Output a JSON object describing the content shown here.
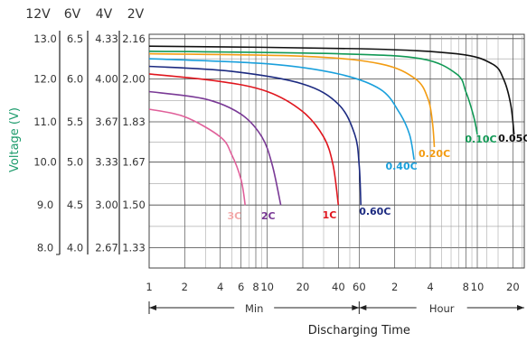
{
  "chart_data": {
    "type": "line",
    "ylabel": "Voltage (V)",
    "xlabel": "Discharging Time",
    "x_scale": "log",
    "x_unit_left": "Min",
    "x_unit_right": "Hour",
    "x_ticks": [
      {
        "label": "1",
        "minutes": 1
      },
      {
        "label": "2",
        "minutes": 2
      },
      {
        "label": "4",
        "minutes": 4
      },
      {
        "label": "6",
        "minutes": 6
      },
      {
        "label": "8",
        "minutes": 8
      },
      {
        "label": "10",
        "minutes": 10
      },
      {
        "label": "20",
        "minutes": 20
      },
      {
        "label": "40",
        "minutes": 40
      },
      {
        "label": "60",
        "minutes": 60
      },
      {
        "label": "2",
        "minutes": 120
      },
      {
        "label": "4",
        "minutes": 240
      },
      {
        "label": "8",
        "minutes": 480
      },
      {
        "label": "10",
        "minutes": 600
      },
      {
        "label": "20",
        "minutes": 1200
      }
    ],
    "y_scale_headers": [
      "12V",
      "6V",
      "4V",
      "2V"
    ],
    "y_scales": [
      [
        "13.0",
        "12.0",
        "11.0",
        "10.0",
        "9.0",
        "8.0"
      ],
      [
        "6.5",
        "6.0",
        "5.5",
        "5.0",
        "4.5",
        "4.0"
      ],
      [
        "4.33",
        "4.00",
        "3.67",
        "3.33",
        "3.00",
        "2.67"
      ],
      [
        "2.16",
        "2.00",
        "1.83",
        "1.67",
        "1.50",
        "1.33"
      ]
    ],
    "ylim_2v": [
      1.25,
      2.17
    ],
    "series": [
      {
        "name": "3C",
        "color": "#e0609a",
        "label_color": "#f2a9a9",
        "points": [
          [
            1,
            1.88
          ],
          [
            2,
            1.85
          ],
          [
            4,
            1.77
          ],
          [
            5,
            1.7
          ],
          [
            6,
            1.6
          ],
          [
            6.5,
            1.5
          ]
        ]
      },
      {
        "name": "2C",
        "color": "#7a3a96",
        "label_color": "#7a3a96",
        "points": [
          [
            1,
            1.95
          ],
          [
            3,
            1.92
          ],
          [
            6,
            1.86
          ],
          [
            9,
            1.77
          ],
          [
            11,
            1.66
          ],
          [
            13,
            1.5
          ]
        ]
      },
      {
        "name": "1C",
        "color": "#e0161e",
        "label_color": "#e0161e",
        "points": [
          [
            1,
            2.02
          ],
          [
            4,
            1.99
          ],
          [
            10,
            1.95
          ],
          [
            20,
            1.87
          ],
          [
            30,
            1.77
          ],
          [
            36,
            1.66
          ],
          [
            40,
            1.5
          ]
        ]
      },
      {
        "name": "0.60C",
        "color": "#1c2a80",
        "label_color": "#1c2a80",
        "points": [
          [
            1,
            2.05
          ],
          [
            5,
            2.03
          ],
          [
            20,
            1.98
          ],
          [
            40,
            1.9
          ],
          [
            55,
            1.78
          ],
          [
            60,
            1.66
          ],
          [
            62,
            1.5
          ]
        ]
      },
      {
        "name": "0.40C",
        "color": "#1aa0dc",
        "label_color": "#1aa0dc",
        "points": [
          [
            1,
            2.08
          ],
          [
            10,
            2.06
          ],
          [
            40,
            2.02
          ],
          [
            90,
            1.96
          ],
          [
            130,
            1.87
          ],
          [
            160,
            1.78
          ],
          [
            175,
            1.68
          ]
        ]
      },
      {
        "name": "0.20C",
        "color": "#f39c12",
        "label_color": "#f39c12",
        "points": [
          [
            1,
            2.1
          ],
          [
            20,
            2.09
          ],
          [
            90,
            2.06
          ],
          [
            180,
            2.0
          ],
          [
            230,
            1.92
          ],
          [
            250,
            1.83
          ],
          [
            260,
            1.73
          ]
        ]
      },
      {
        "name": "0.10C",
        "color": "#119955",
        "label_color": "#119955",
        "points": [
          [
            1,
            2.11
          ],
          [
            40,
            2.1
          ],
          [
            200,
            2.08
          ],
          [
            400,
            2.02
          ],
          [
            480,
            1.95
          ],
          [
            560,
            1.85
          ],
          [
            600,
            1.78
          ]
        ]
      },
      {
        "name": "0.05C",
        "color": "#111111",
        "label_color": "#111111",
        "points": [
          [
            1,
            2.13
          ],
          [
            60,
            2.12
          ],
          [
            400,
            2.1
          ],
          [
            800,
            2.06
          ],
          [
            1000,
            2.0
          ],
          [
            1150,
            1.9
          ],
          [
            1230,
            1.78
          ]
        ]
      }
    ]
  }
}
